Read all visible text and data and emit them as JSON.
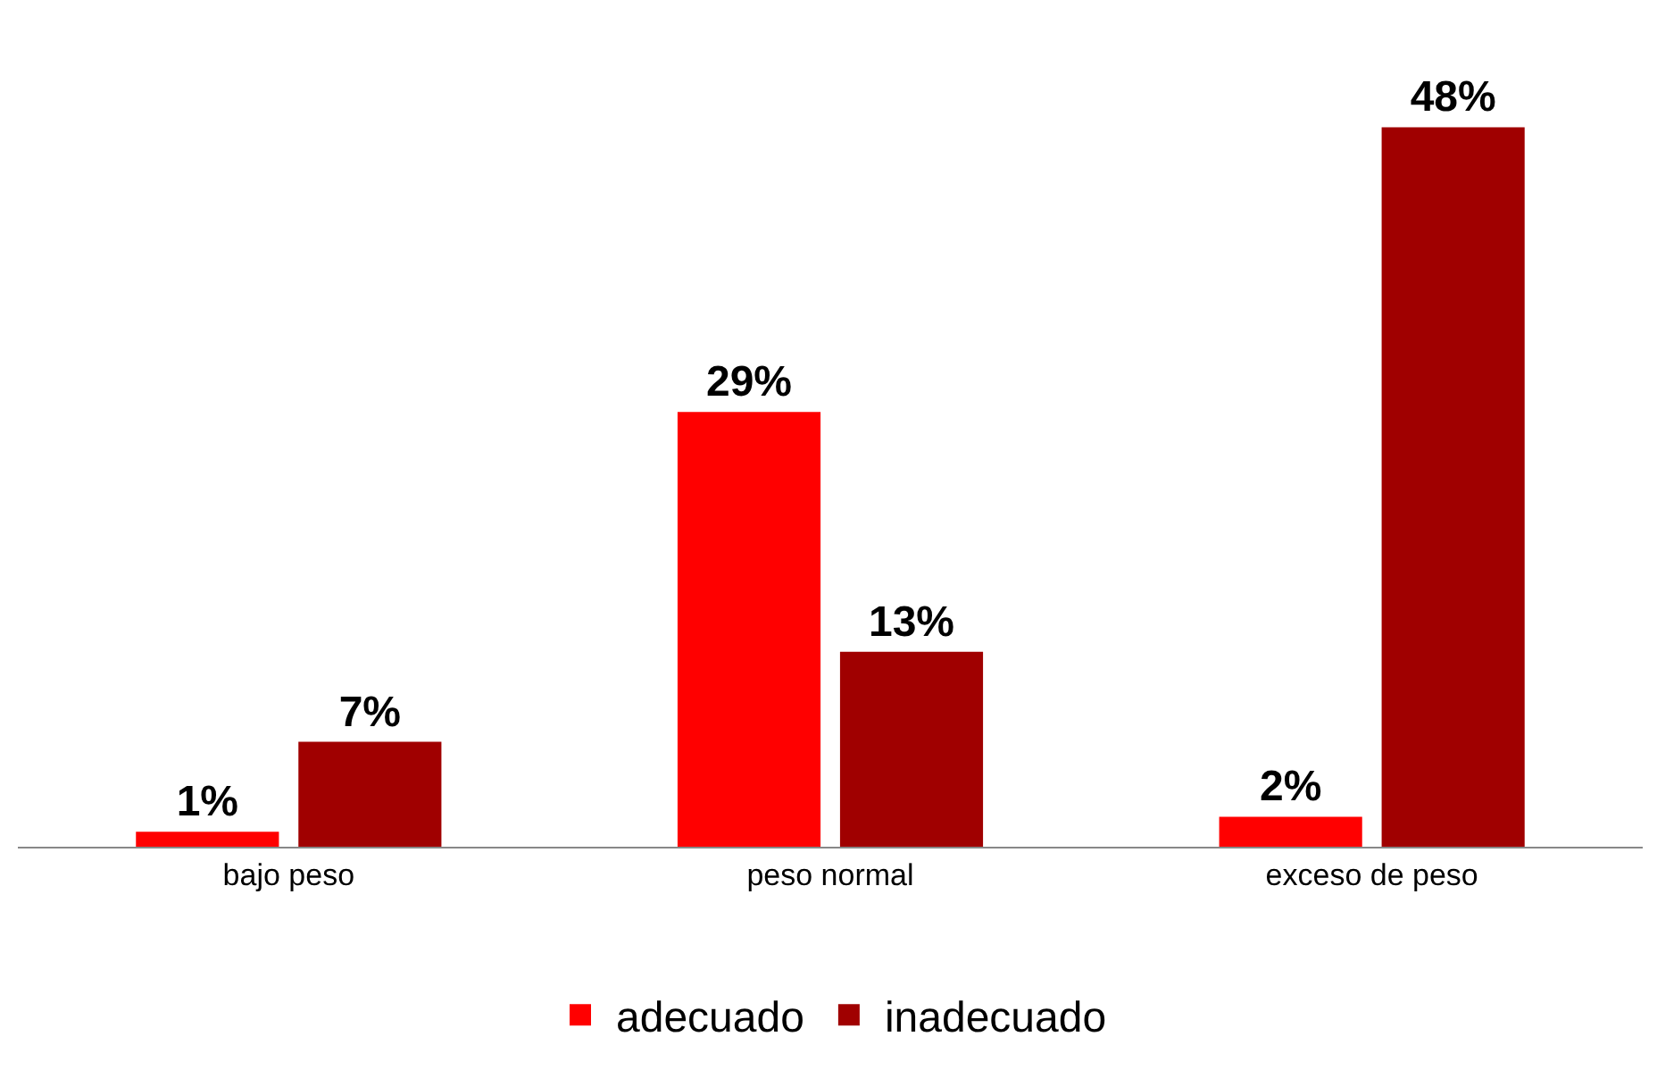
{
  "chart_data": {
    "type": "bar",
    "categories": [
      "bajo peso",
      "peso normal",
      "exceso de peso"
    ],
    "series": [
      {
        "name": "adecuado",
        "color": "#ff0000",
        "values": [
          1,
          29,
          2
        ],
        "value_labels": [
          "1%",
          "29%",
          "2%"
        ]
      },
      {
        "name": "inadecuado",
        "color": "#a00000",
        "values": [
          7,
          13,
          48
        ],
        "value_labels": [
          "7%",
          "13%",
          "48%"
        ]
      }
    ],
    "legend": "bottom"
  }
}
